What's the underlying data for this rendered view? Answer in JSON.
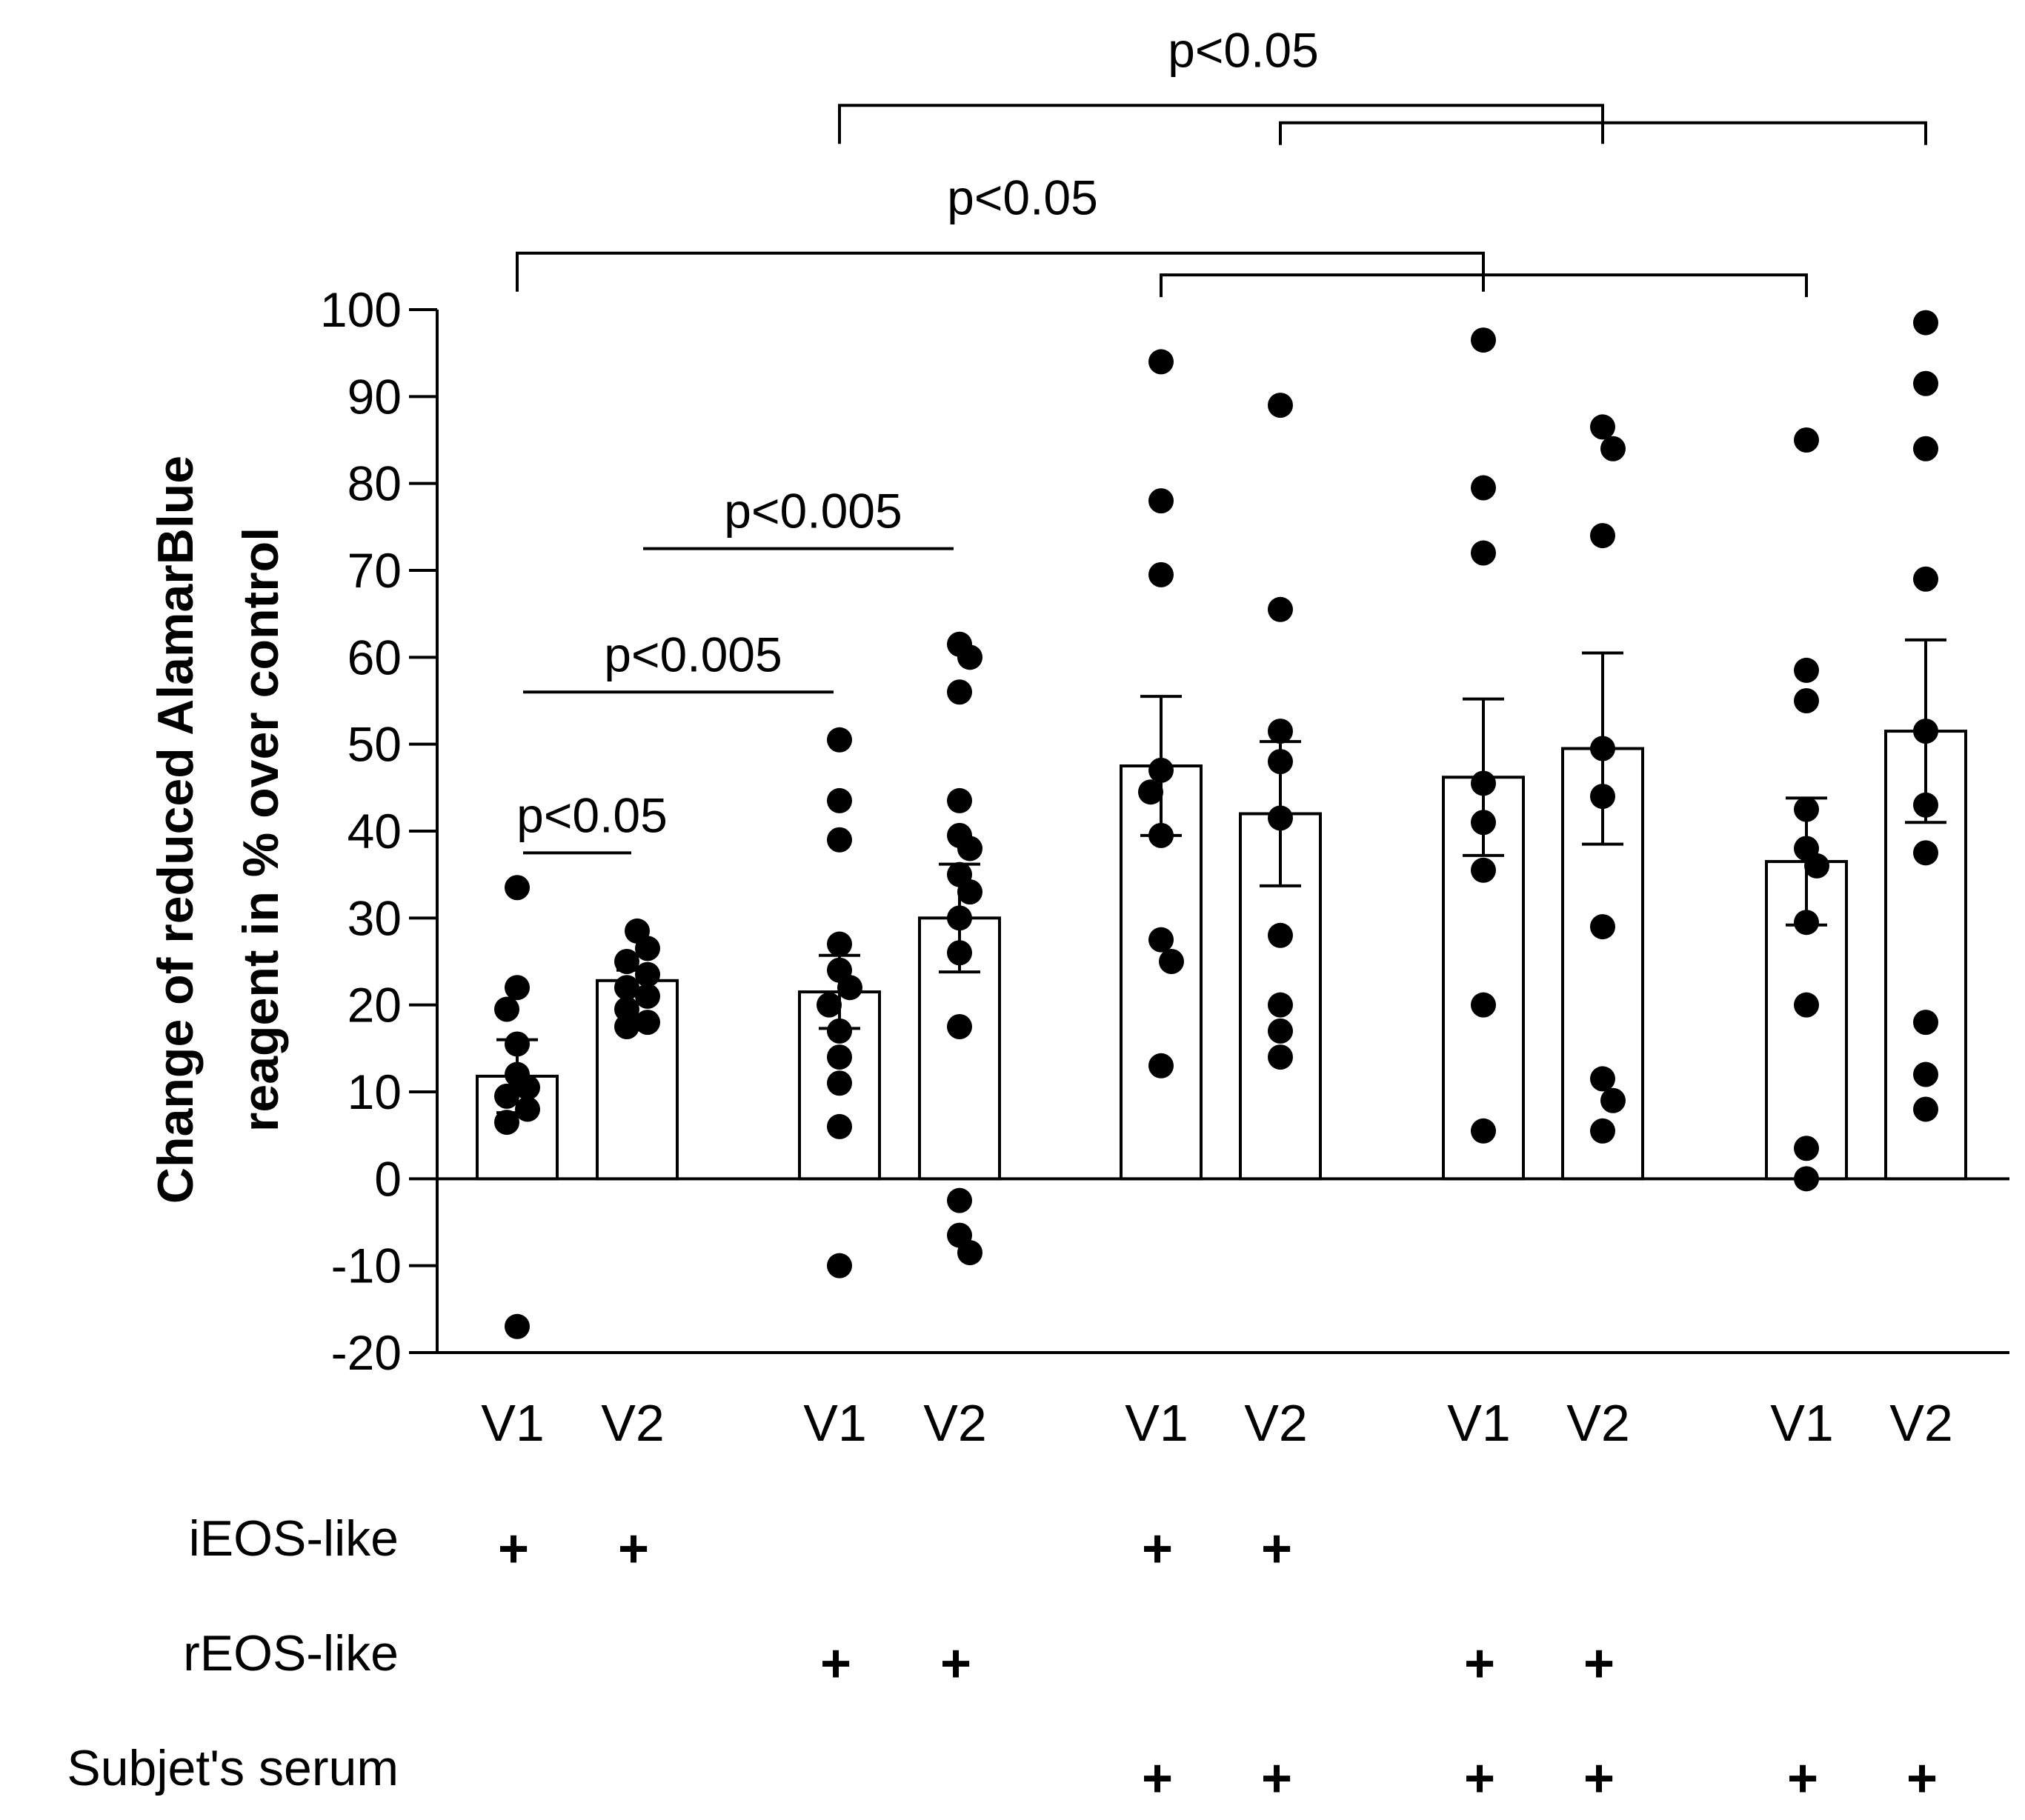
{
  "chart_data": {
    "type": "bar",
    "ylabel_lines": [
      "Change of reduced AlamarBlue",
      "reagent in % over control"
    ],
    "ylim": [
      -20,
      100
    ],
    "yticks": [
      100,
      90,
      80,
      70,
      60,
      50,
      40,
      30,
      20,
      10,
      0,
      -10,
      -20
    ],
    "categories": [
      "V1",
      "V2",
      "V1",
      "V2",
      "V1",
      "V2",
      "V1",
      "V2",
      "V1",
      "V2"
    ],
    "bars": [
      {
        "label": "V1",
        "mean": 11.8,
        "sem": 4.2,
        "points": [
          33.5,
          22,
          19.5,
          15.5,
          12,
          10.5,
          9.5,
          8,
          6.5,
          -17
        ]
      },
      {
        "label": "V2",
        "mean": 22.8,
        "sem": 1.2,
        "points": [
          28.5,
          26.5,
          25,
          23.5,
          22,
          21,
          19.5,
          18,
          17.5
        ]
      },
      {
        "label": "V1",
        "mean": 21.5,
        "sem": 4.2,
        "points": [
          50.5,
          43.5,
          39,
          27,
          24,
          22,
          20,
          17,
          14,
          11,
          6,
          -10
        ]
      },
      {
        "label": "V2",
        "mean": 30.0,
        "sem": 6.2,
        "points": [
          61.5,
          60,
          56,
          43.5,
          39.5,
          38,
          35,
          33,
          30,
          26,
          17.5,
          -2.5,
          -6.5,
          -8.5
        ]
      },
      {
        "label": "V1",
        "mean": 47.5,
        "sem": 8.0,
        "points": [
          94,
          78,
          69.5,
          47,
          44.5,
          39.5,
          27.5,
          25,
          13
        ]
      },
      {
        "label": "V2",
        "mean": 42.0,
        "sem": 8.3,
        "points": [
          89,
          65.5,
          51.5,
          48,
          41.5,
          28,
          20,
          17,
          14
        ]
      },
      {
        "label": "V1",
        "mean": 46.2,
        "sem": 9.0,
        "points": [
          96.5,
          79.5,
          72,
          45.5,
          41,
          35.5,
          20,
          5.5
        ]
      },
      {
        "label": "V2",
        "mean": 49.5,
        "sem": 11.0,
        "points": [
          86.5,
          84,
          74,
          49.5,
          44,
          29,
          11.5,
          9,
          5.5
        ]
      },
      {
        "label": "V1",
        "mean": 36.5,
        "sem": 7.3,
        "points": [
          85,
          58.5,
          55,
          42.5,
          38,
          36,
          29.5,
          20,
          3.5,
          0
        ]
      },
      {
        "label": "V2",
        "mean": 51.5,
        "sem": 10.5,
        "points": [
          98.5,
          91.5,
          84,
          69,
          51.5,
          43,
          37.5,
          18,
          12,
          8
        ]
      }
    ],
    "row_labels": [
      "iEOS-like",
      "rEOS-like",
      "Subjet's serum"
    ],
    "row_marks": [
      {
        "row": 0,
        "bars": [
          0,
          1,
          4,
          5
        ]
      },
      {
        "row": 1,
        "bars": [
          2,
          3,
          6,
          7
        ]
      },
      {
        "row": 2,
        "bars": [
          4,
          5,
          6,
          7,
          8,
          9
        ]
      }
    ],
    "plus_symbol": "+",
    "annotations": [
      {
        "text": "p<0.05",
        "type": "line",
        "from_bar": 0,
        "to_bar": 1,
        "y": 37.5
      },
      {
        "text": "p<0.005",
        "type": "line",
        "from_bar": 0,
        "to_bar": 2,
        "y": 56
      },
      {
        "text": "p<0.005",
        "type": "line",
        "from_bar": 1,
        "to_bar": 3,
        "y": 72.5
      },
      {
        "text": "p<0.05",
        "type": "bracket-pair",
        "outer": [
          0,
          6
        ],
        "inner": [
          4,
          8
        ],
        "y_outer": 106.5,
        "y_inner": 104
      },
      {
        "text": "p<0.05",
        "type": "bracket-pair",
        "outer": [
          2,
          7
        ],
        "inner": [
          5,
          9
        ],
        "y_outer": 123.5,
        "y_inner": 121.5
      }
    ]
  }
}
